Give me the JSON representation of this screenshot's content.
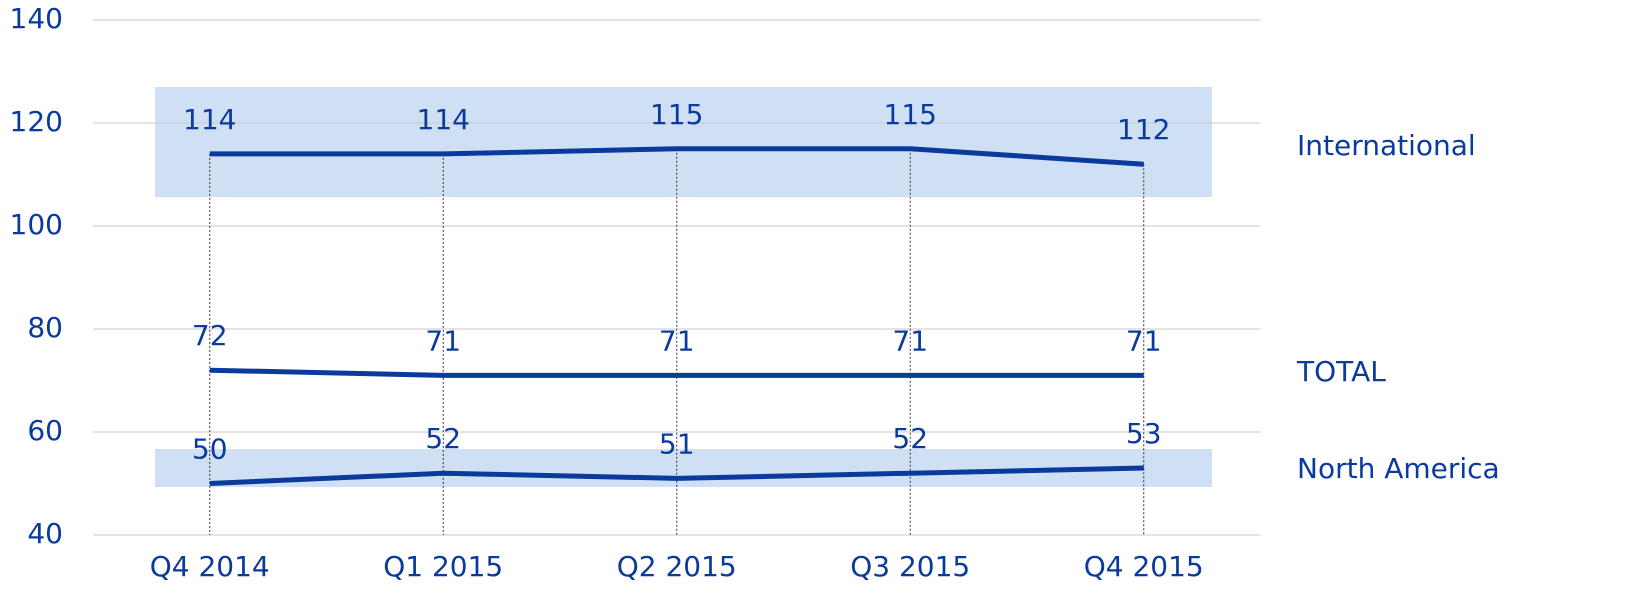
{
  "chart_data": {
    "type": "line",
    "categories": [
      "Q4 2014",
      "Q1 2015",
      "Q2 2015",
      "Q3 2015",
      "Q4 2015"
    ],
    "series": [
      {
        "name": "International",
        "color": "#0a3a9c",
        "values": [
          114,
          114,
          115,
          115,
          112
        ]
      },
      {
        "name": "TOTAL",
        "color": "#0a3a9c",
        "values": [
          72,
          71,
          71,
          71,
          71
        ]
      },
      {
        "name": "North America",
        "color": "#0a3a9c",
        "values": [
          50,
          52,
          51,
          52,
          53
        ]
      }
    ],
    "ylim": [
      40,
      140
    ],
    "yticks": [
      40,
      60,
      80,
      100,
      120,
      140
    ],
    "grid": true
  }
}
